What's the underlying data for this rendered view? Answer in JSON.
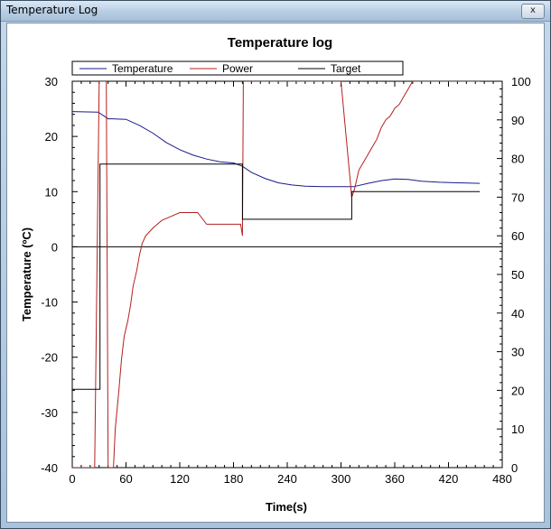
{
  "window": {
    "title": "Temperature Log",
    "close_glyph": "x"
  },
  "chart_data": {
    "type": "line",
    "title": "Temperature log",
    "xlabel": "Time(s)",
    "ylabel": "Temperature (ºC)",
    "y2label": "",
    "xlim": [
      0,
      480
    ],
    "ylim": [
      -40,
      30
    ],
    "y2lim": [
      0,
      100
    ],
    "xticks": [
      0,
      60,
      120,
      180,
      240,
      300,
      360,
      420,
      480
    ],
    "yticks": [
      30,
      20,
      10,
      0,
      -10,
      -20,
      -30,
      -40
    ],
    "y2ticks": [
      100,
      90,
      80,
      70,
      60,
      50,
      40,
      30,
      20,
      10,
      0
    ],
    "grid": false,
    "zero_line": true,
    "legend_position": "top",
    "series": [
      {
        "name": "Temperature",
        "color": "#1a1a8c",
        "axis": "left",
        "x": [
          0,
          29,
          40,
          45,
          60,
          75,
          90,
          105,
          120,
          135,
          150,
          165,
          180,
          190,
          200,
          215,
          230,
          245,
          260,
          280,
          300,
          314,
          330,
          345,
          360,
          375,
          390,
          410,
          430,
          455
        ],
        "y": [
          24.5,
          24.4,
          23.2,
          23.2,
          23.1,
          22.0,
          20.6,
          18.9,
          17.6,
          16.6,
          15.9,
          15.4,
          15.2,
          14.6,
          13.5,
          12.4,
          11.6,
          11.2,
          11.0,
          10.9,
          10.9,
          10.9,
          11.5,
          12.0,
          12.3,
          12.2,
          11.9,
          11.7,
          11.6,
          11.5
        ]
      },
      {
        "name": "Power",
        "color": "#b42020",
        "axis": "right",
        "x": [
          0,
          25,
          30,
          38,
          40,
          46,
          48,
          52,
          55,
          58,
          62,
          65,
          68,
          72,
          75,
          78,
          82,
          86,
          90,
          95,
          100,
          110,
          120,
          130,
          140,
          150,
          188,
          190,
          191,
          300,
          312,
          315,
          320,
          325,
          330,
          335,
          340,
          345,
          350,
          355,
          360,
          365,
          370,
          375,
          380,
          455
        ],
        "y": [
          0,
          0,
          100,
          100,
          0,
          0,
          10,
          20,
          28,
          34,
          38,
          42,
          47,
          51,
          55,
          58,
          60,
          61,
          62,
          63,
          64,
          65,
          66,
          66,
          66,
          63,
          63,
          60,
          100,
          100,
          70,
          72,
          77,
          79,
          81,
          83,
          85,
          88,
          90,
          91,
          93,
          94,
          96,
          98,
          100,
          100
        ]
      },
      {
        "name": "Target",
        "color": "#000000",
        "axis": "left",
        "x": [
          0,
          31,
          31,
          190,
          190,
          312,
          312,
          455
        ],
        "y": [
          -25.8,
          -25.8,
          15,
          15,
          5,
          5,
          10,
          10
        ]
      }
    ]
  }
}
